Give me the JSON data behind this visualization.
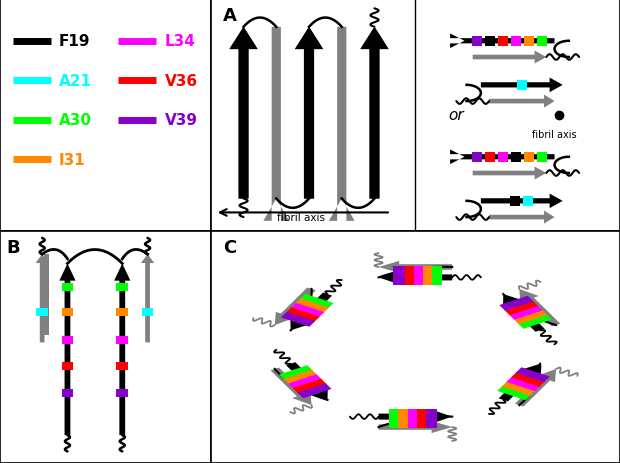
{
  "colors": {
    "F19": "#000000",
    "A21": "#00ffff",
    "A30": "#00ff00",
    "I31": "#ff8800",
    "L34": "#ff00ff",
    "V36": "#ff0000",
    "V39": "#8800cc"
  },
  "legend_left": [
    [
      "F19",
      "#000000"
    ],
    [
      "A21",
      "#00ffff"
    ],
    [
      "A30",
      "#00ff00"
    ],
    [
      "I31",
      "#ff8800"
    ]
  ],
  "legend_right": [
    [
      "L34",
      "#ff00ff"
    ],
    [
      "V36",
      "#ff0000"
    ],
    [
      "V39",
      "#8800cc"
    ]
  ]
}
